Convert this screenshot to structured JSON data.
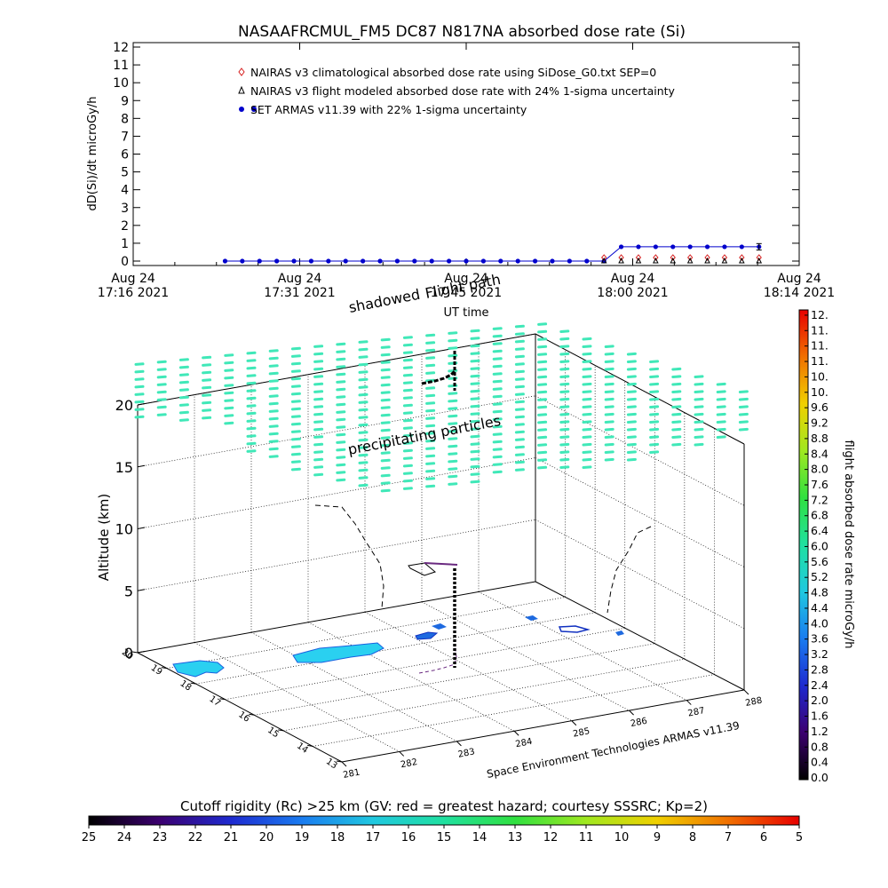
{
  "title": "NASAAFRCMUL_FM5 DC87 N817NA absorbed dose rate (Si)",
  "footer": "Space Environment Technologies ARMAS v11.39",
  "chart_data": [
    {
      "type": "line",
      "ylabel": "dD(Si)/dt microGy/h",
      "xlabel": "UT time",
      "ylim": [
        0,
        12
      ],
      "yticks": [
        "0",
        "1",
        "2",
        "3",
        "4",
        "5",
        "6",
        "7",
        "8",
        "9",
        "10",
        "11",
        "12"
      ],
      "xtick_labels": [
        {
          "date": "Aug 24",
          "time": "17:16 2021"
        },
        {
          "date": "Aug 24",
          "time": "17:31 2021"
        },
        {
          "date": "Aug 24",
          "time": "17:45 2021"
        },
        {
          "date": "Aug 24",
          "time": "18:00 2021"
        },
        {
          "date": "Aug 24",
          "time": "18:14 2021"
        }
      ],
      "xlim_minutes": [
        0,
        58
      ],
      "legend": [
        {
          "text": "NAIRAS v3 climatological absorbed dose rate using SiDose_G0.txt SEP=0",
          "marker": "diamond",
          "color": "#d62020"
        },
        {
          "text": "NAIRAS v3 flight modeled absorbed dose rate with 24% 1-sigma uncertainty",
          "marker": "triangle",
          "color": "#000000"
        },
        {
          "text": "SET ARMAS v11.39 with 22% 1-sigma uncertainty",
          "marker": "dot",
          "color": "#0000cc"
        }
      ],
      "series": [
        {
          "name": "NAIRAS v3 climatological absorbed dose rate using SiDose_G0.txt SEP=0",
          "x_minutes": [
            41,
            42.5,
            44,
            45.5,
            47,
            48.5,
            50,
            51.5,
            53,
            54.5
          ],
          "values": [
            0.1,
            0.1,
            0.1,
            0.1,
            0.1,
            0.1,
            0.1,
            0.1,
            0.1,
            0.1
          ]
        },
        {
          "name": "NAIRAS v3 flight modeled absorbed dose rate with 24% 1-sigma uncertainty",
          "x_minutes": [
            41,
            42.5,
            44,
            45.5,
            47,
            48.5,
            50,
            51.5,
            53,
            54.5
          ],
          "values": [
            0.05,
            0.05,
            0.05,
            0.05,
            0.05,
            0.05,
            0.05,
            0.05,
            0.05,
            0.05
          ]
        },
        {
          "name": "SET ARMAS v11.39 with 22% 1-sigma uncertainty",
          "x_minutes": [
            8,
            9.5,
            11,
            12.5,
            14,
            15.5,
            17,
            18.5,
            20,
            21.5,
            23,
            24.5,
            26,
            27.5,
            29,
            30.5,
            32,
            33.5,
            35,
            36.5,
            38,
            39.5,
            41,
            42.5,
            44,
            45.5,
            47,
            48.5,
            50,
            51.5,
            53,
            54.5
          ],
          "values": [
            0,
            0,
            0,
            0,
            0,
            0,
            0,
            0,
            0,
            0,
            0,
            0,
            0,
            0,
            0,
            0,
            0,
            0,
            0,
            0,
            0,
            0,
            0,
            0.8,
            0.8,
            0.8,
            0.8,
            0.8,
            0.8,
            0.8,
            0.8,
            0.8
          ],
          "error": 0.18
        }
      ]
    },
    {
      "type": "scatter",
      "zlabel": "Altitude (km)",
      "zticks": [
        "0",
        "5",
        "10",
        "15",
        "20"
      ],
      "zlim": [
        0,
        20
      ],
      "lon_ticks": [
        "281",
        "282",
        "283",
        "284",
        "285",
        "286",
        "287",
        "288"
      ],
      "lat_ticks": [
        "13",
        "14",
        "15",
        "16",
        "17",
        "18",
        "19",
        "20"
      ],
      "annotations": [
        "shadowed",
        "Flight path",
        "precipitating particles"
      ],
      "particle_color": "#40e8b8",
      "flight_path_color": "#000000"
    }
  ],
  "dose_colorbar": {
    "label": "flight absorbed dose rate microGy/h",
    "ticks": [
      "0.0",
      "0.4",
      "0.8",
      "1.2",
      "1.6",
      "2.0",
      "2.4",
      "2.8",
      "3.2",
      "3.6",
      "4.0",
      "4.4",
      "4.8",
      "5.2",
      "5.6",
      "6.0",
      "6.4",
      "6.8",
      "7.2",
      "7.6",
      "8.0",
      "8.4",
      "8.8",
      "9.2",
      "9.6",
      "10.",
      "10.",
      "11.",
      "11.",
      "11.",
      "12."
    ]
  },
  "rc_colorbar": {
    "title": "Cutoff rigidity (Rc) >25 km (GV: red = greatest hazard; courtesy SSSRC; Kp=2)",
    "ticks": [
      "25",
      "24",
      "23",
      "22",
      "21",
      "20",
      "19",
      "18",
      "17",
      "16",
      "15",
      "14",
      "13",
      "12",
      "11",
      "10",
      "9",
      "8",
      "7",
      "6",
      "5"
    ]
  }
}
